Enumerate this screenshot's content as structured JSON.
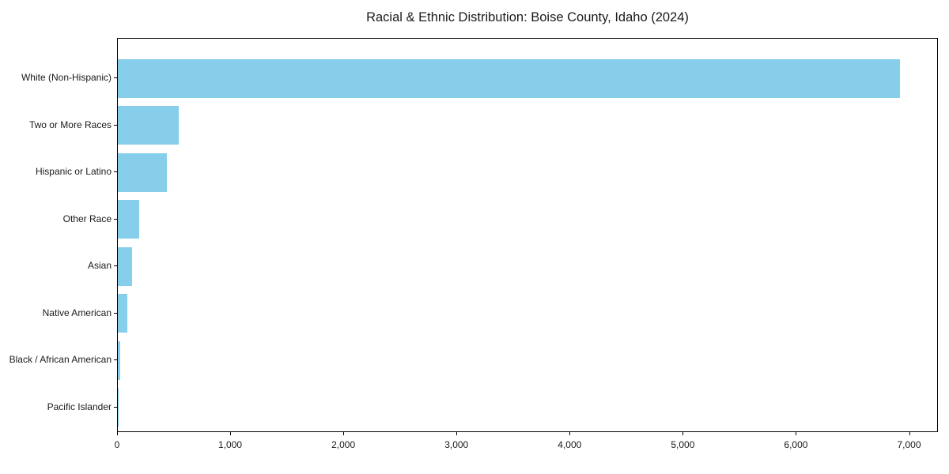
{
  "title": "Racial & Ethnic Distribution: Boise County, Idaho (2024)",
  "chart_data": {
    "type": "bar",
    "orientation": "horizontal",
    "title": "Racial & Ethnic Distribution: Boise County, Idaho (2024)",
    "categories": [
      "White (Non-Hispanic)",
      "Two or More Races",
      "Hispanic or Latino",
      "Other Race",
      "Asian",
      "Native American",
      "Black / African American",
      "Pacific Islander"
    ],
    "values": [
      6910,
      540,
      430,
      190,
      125,
      85,
      20,
      3
    ],
    "xlabel": "",
    "ylabel": "",
    "xlim": [
      0,
      7255
    ],
    "xticks": [
      0,
      1000,
      2000,
      3000,
      4000,
      5000,
      6000,
      7000
    ],
    "xtick_labels": [
      "0",
      "1,000",
      "2,000",
      "3,000",
      "4,000",
      "5,000",
      "6,000",
      "7,000"
    ],
    "grid": false,
    "legend": false,
    "bar_color": "#87CEEB"
  },
  "colors": {
    "bar": "#87CEEB",
    "text": "#1a1a1a",
    "spine": "#000000",
    "background": "#ffffff"
  }
}
